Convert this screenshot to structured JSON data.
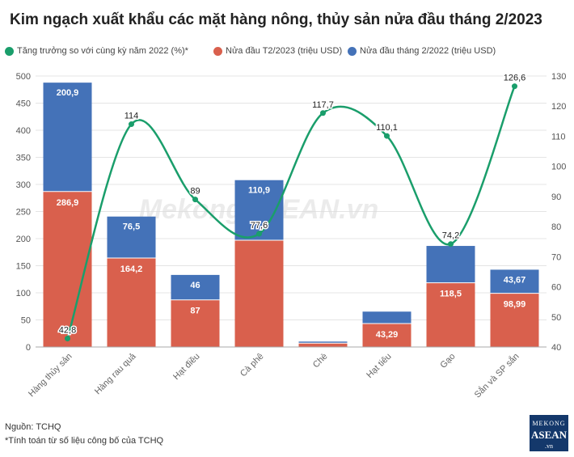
{
  "title": "Kim ngạch xuất khẩu các mặt hàng nông, thủy sản nửa đầu tháng 2/2023",
  "legend": [
    {
      "label": "Tăng trưởng so với cùng kỳ năm 2022 (%)*",
      "color": "#1a9e6b"
    },
    {
      "label": "Nửa đầu T2/2023 (triệu USD)",
      "color": "#d9604d"
    },
    {
      "label": "Nửa đầu tháng 2/2022 (triệu USD)",
      "color": "#4472b8"
    }
  ],
  "watermark": "MekongASEAN.vn",
  "source": "Nguồn: TCHQ",
  "footnote": "*Tính toán từ số liệu công bố của TCHQ",
  "logo": {
    "line1": "MEKONG",
    "line2": "ASEAN",
    "line3": ".vn"
  },
  "chart_data": {
    "type": "bar",
    "stacked": true,
    "categories": [
      "Hàng thủy sản",
      "Hàng rau quả",
      "Hạt điều",
      "Cà phê",
      "Chè",
      "Hạt tiêu",
      "Gạo",
      "Sắn và SP sắn"
    ],
    "series": [
      {
        "name": "Nửa đầu T2/2023 (triệu USD)",
        "color": "#d9604d",
        "axis": "left",
        "values": [
          286.9,
          164.2,
          87,
          197,
          7,
          43.29,
          118.5,
          98.99
        ],
        "labels": [
          "286,9",
          "164,2",
          "87",
          "",
          "",
          "43,29",
          "118,5",
          "98,99"
        ]
      },
      {
        "name": "Nửa đầu tháng 2/2022 (triệu USD)",
        "color": "#4472b8",
        "axis": "left",
        "values": [
          200.9,
          76.5,
          46,
          110.9,
          3,
          22,
          68,
          43.67
        ],
        "labels": [
          "200,9",
          "76,5",
          "46",
          "110,9",
          "",
          "",
          "",
          "43,67"
        ]
      },
      {
        "name": "Tăng trưởng so với cùng kỳ năm 2022 (%)*",
        "color": "#1a9e6b",
        "type": "line",
        "axis": "right",
        "values": [
          42.8,
          114,
          89,
          77.6,
          117.7,
          110.1,
          74.2,
          126.6
        ],
        "labels": [
          "42,8",
          "114",
          "89",
          "77,6",
          "117,7",
          "110,1",
          "74,2",
          "126,6"
        ]
      }
    ],
    "y_left": {
      "min": 0,
      "max": 500,
      "ticks": [
        0,
        50,
        100,
        150,
        200,
        250,
        300,
        350,
        400,
        450,
        500
      ]
    },
    "y_right": {
      "min": 40,
      "max": 130,
      "ticks": [
        40,
        50,
        60,
        70,
        80,
        90,
        100,
        110,
        120,
        130
      ]
    },
    "grid": true,
    "legend_position": "top-left"
  }
}
